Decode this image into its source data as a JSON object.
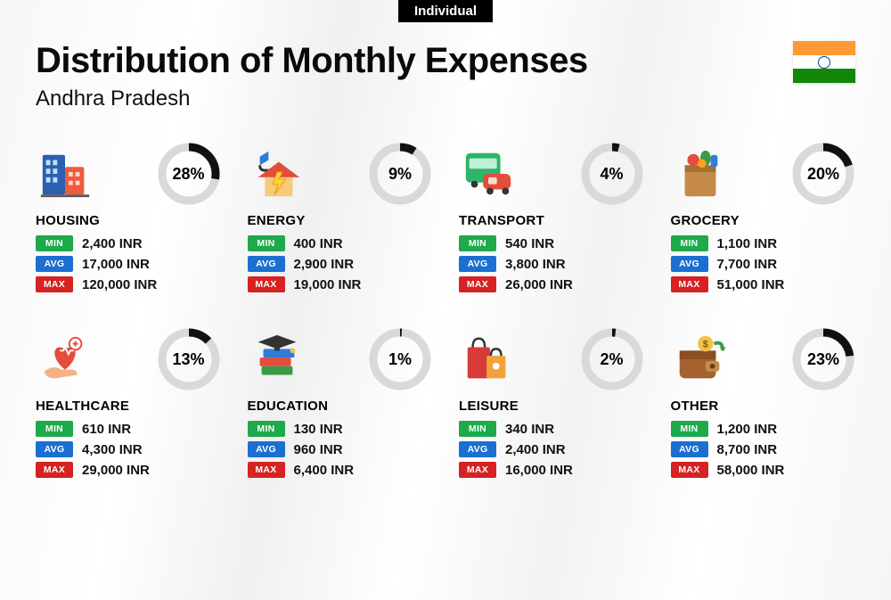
{
  "tag_label": "Individual",
  "title": "Distribution of Monthly Expenses",
  "subtitle": "Andhra Pradesh",
  "flag": {
    "top": "#ff9933",
    "mid": "#ffffff",
    "bot": "#138808",
    "chakra": "#054187"
  },
  "donut": {
    "fg": "#111111",
    "bg": "#d9d9d9",
    "stroke_width": 9
  },
  "badges": {
    "min": {
      "label": "MIN",
      "color": "#1ea94b"
    },
    "avg": {
      "label": "AVG",
      "color": "#1b6fd0"
    },
    "max": {
      "label": "MAX",
      "color": "#d62222"
    }
  },
  "currency_suffix": " INR",
  "categories": [
    {
      "key": "housing",
      "name": "HOUSING",
      "pct": 28,
      "min": "2,400",
      "avg": "17,000",
      "max": "120,000",
      "icon": "buildings"
    },
    {
      "key": "energy",
      "name": "ENERGY",
      "pct": 9,
      "min": "400",
      "avg": "2,900",
      "max": "19,000",
      "icon": "energy-house"
    },
    {
      "key": "transport",
      "name": "TRANSPORT",
      "pct": 4,
      "min": "540",
      "avg": "3,800",
      "max": "26,000",
      "icon": "bus-car"
    },
    {
      "key": "grocery",
      "name": "GROCERY",
      "pct": 20,
      "min": "1,100",
      "avg": "7,700",
      "max": "51,000",
      "icon": "grocery-bag"
    },
    {
      "key": "healthcare",
      "name": "HEALTHCARE",
      "pct": 13,
      "min": "610",
      "avg": "4,300",
      "max": "29,000",
      "icon": "heart-hand"
    },
    {
      "key": "education",
      "name": "EDUCATION",
      "pct": 1,
      "min": "130",
      "avg": "960",
      "max": "6,400",
      "icon": "grad-books"
    },
    {
      "key": "leisure",
      "name": "LEISURE",
      "pct": 2,
      "min": "340",
      "avg": "2,400",
      "max": "16,000",
      "icon": "shopping-bags"
    },
    {
      "key": "other",
      "name": "OTHER",
      "pct": 23,
      "min": "1,200",
      "avg": "8,700",
      "max": "58,000",
      "icon": "wallet"
    }
  ],
  "icons_svg": {
    "buildings": "<svg width='62' height='62' viewBox='0 0 64 64'><rect x='6' y='10' width='26' height='46' rx='2' fill='#2b5fb0'/><rect x='10' y='16' width='5' height='6' fill='#bfe0ff'/><rect x='18' y='16' width='5' height='6' fill='#bfe0ff'/><rect x='10' y='26' width='5' height='6' fill='#bfe0ff'/><rect x='18' y='26' width='5' height='6' fill='#bfe0ff'/><rect x='10' y='36' width='5' height='6' fill='#bfe0ff'/><rect x='18' y='36' width='5' height='6' fill='#bfe0ff'/><rect x='32' y='24' width='22' height='32' rx='2' fill='#ef5b3c'/><rect x='36' y='30' width='5' height='5' fill='#ffd9c8'/><rect x='44' y='30' width='5' height='5' fill='#ffd9c8'/><rect x='36' y='40' width='5' height='5' fill='#ffd9c8'/><rect x='44' y='40' width='5' height='5' fill='#ffd9c8'/><rect x='4' y='56' width='56' height='3' fill='#5a5a5a'/></svg>",
    "energy-house": "<svg width='62' height='62' viewBox='0 0 64 64'><path d='M22 6 L22 16 L12 22 L12 12 Z' fill='#2e7dd7'/><path d='M12 22 Q12 28 18 28 L26 28' stroke='#333' stroke-width='3' fill='none'/><polygon points='34,18 58,36 10,36' fill='#e44c3c'/><rect x='18' y='36' width='32' height='22' fill='#f7c979'/><polygon points='32,30 27,44 33,44 29,56 42,38 34,38 38,30' fill='#ffd23f' stroke='#e6a400' stroke-width='1'/></svg>",
    "bus-car": "<svg width='62' height='62' viewBox='0 0 64 64'><rect x='6' y='8' width='40' height='34' rx='5' fill='#2fb46a'/><rect x='10' y='14' width='32' height='12' rx='2' fill='#bff0d6'/><circle cx='16' cy='44' r='4' fill='#333'/><circle cx='38' cy='44' r='4' fill='#333'/><rect x='26' y='32' width='32' height='18' rx='6' fill='#e44c3c'/><rect x='32' y='36' width='10' height='8' rx='2' fill='#ffd9c8'/><circle cx='34' cy='52' r='4' fill='#333'/><circle cx='52' cy='52' r='4' fill='#333'/></svg>",
    "grocery-bag": "<svg width='62' height='62' viewBox='0 0 64 64'><rect x='14' y='22' width='36' height='36' rx='3' fill='#c58a4a'/><rect x='14' y='22' width='36' height='8' fill='#a56f35'/><circle cx='24' cy='16' r='7' fill='#e44c3c'/><ellipse cx='38' cy='14' rx='6' ry='9' fill='#3a9b47'/><rect x='44' y='10' width='8' height='14' rx='3' fill='#2e7dd7'/><circle cx='34' cy='20' r='5' fill='#ff9f1c'/></svg>",
    "heart-hand": "<svg width='62' height='62' viewBox='0 0 64 64'><path d='M32 44 C14 30 18 12 32 20 C46 12 50 30 32 44 Z' fill='#e44c3c'/><circle cx='44' cy='14' r='7' fill='#fff' stroke='#e44c3c' stroke-width='2'/><path d='M41 14 L47 14 M44 11 L44 17' stroke='#e44c3c' stroke-width='2'/><path d='M26 22 L30 22 L32 18 L36 26 L38 22 L42 22' stroke='#fff' stroke-width='2' fill='none'/><path d='M8 46 Q18 38 28 44 L40 44 Q46 44 46 50 L20 54 Q10 54 8 46 Z' fill='#f4b183'/></svg>",
    "grad-books": "<svg width='62' height='62' viewBox='0 0 64 64'><rect x='14' y='40' width='36' height='10' rx='2' fill='#3a9b47'/><rect x='12' y='30' width='36' height='10' rx='2' fill='#e44c3c'/><rect x='16' y='20' width='36' height='10' rx='2' fill='#2e7dd7'/><polygon points='32,4 54,12 32,20 10,12' fill='#333'/><rect x='29' y='14' width='6' height='8' fill='#333'/><circle cx='50' cy='22' r='3' fill='#f2c14e'/></svg>",
    "shopping-bags": "<svg width='62' height='62' viewBox='0 0 64 64'><rect x='8' y='18' width='26' height='36' rx='2' fill='#d83a3a'/><path d='M14 18 Q14 8 21 8 Q28 8 28 18' stroke='#333' stroke-width='2.5' fill='none'/><rect x='30' y='28' width='22' height='26' rx='2' fill='#f2a23a'/><path d='M35 28 Q35 20 41 20 Q47 20 47 28' stroke='#333' stroke-width='2.5' fill='none'/><circle cx='41' cy='40' r='4' fill='#fff'/></svg>",
    "wallet": "<svg width='62' height='62' viewBox='0 0 64 64'><rect x='8' y='22' width='42' height='32' rx='6' fill='#a5622f'/><rect x='8' y='22' width='42' height='10' fill='#8c4e22'/><rect x='38' y='34' width='16' height='12' rx='3' fill='#c58a4a'/><circle cx='46' cy='40' r='3' fill='#6b3a17'/><circle cx='38' cy='14' r='9' fill='#f2c14e'/><text x='38' y='18' font-size='11' text-anchor='middle' fill='#7a5a00' font-weight='bold'>$</text><path d='M48 14 Q58 10 58 22' stroke='#3a9b47' stroke-width='4' fill='none'/><polygon points='58,22 54,18 62,18' fill='#3a9b47'/></svg>"
  }
}
